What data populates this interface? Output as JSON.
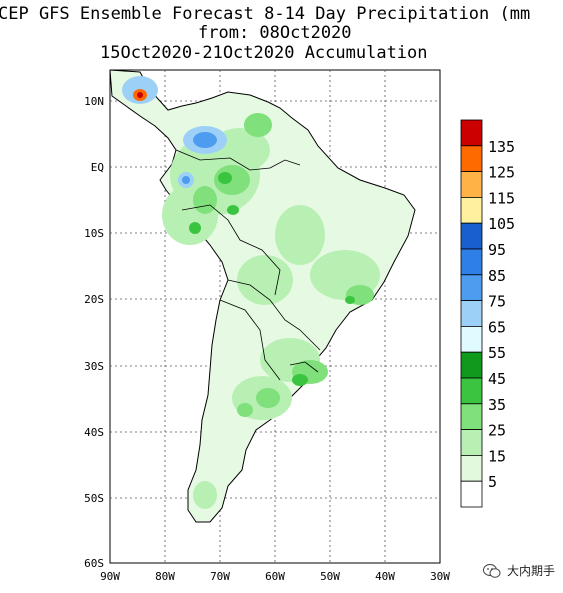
{
  "header": {
    "title_line1": "CEP GFS Ensemble Forecast 8-14 Day Precipitation (mm",
    "title_line2": "from: 08Oct2020",
    "title_line3": "15Oct2020-21Oct2020 Accumulation"
  },
  "map": {
    "region": "South America",
    "lat_labels": [
      "10N",
      "EQ",
      "10S",
      "20S",
      "30S",
      "40S",
      "50S",
      "60S"
    ],
    "lon_labels": [
      "90W",
      "80W",
      "70W",
      "60W",
      "50W",
      "40W",
      "30W"
    ]
  },
  "legend": {
    "levels": [
      {
        "label": "",
        "color": "#cc0000"
      },
      {
        "label": "135",
        "color": "#ff6a00"
      },
      {
        "label": "125",
        "color": "#ffb347"
      },
      {
        "label": "115",
        "color": "#fff0a0"
      },
      {
        "label": "105",
        "color": "#1a5fd0"
      },
      {
        "label": "95",
        "color": "#2f7fe8"
      },
      {
        "label": "85",
        "color": "#4d9cf0"
      },
      {
        "label": "75",
        "color": "#9dd0f7"
      },
      {
        "label": "65",
        "color": "#e0fbff"
      },
      {
        "label": "55",
        "color": "#0f9a1e"
      },
      {
        "label": "45",
        "color": "#3bc43f"
      },
      {
        "label": "35",
        "color": "#7fe07c"
      },
      {
        "label": "25",
        "color": "#b8f0b4"
      },
      {
        "label": "15",
        "color": "#e2f9de"
      },
      {
        "label": "5",
        "color": "#ffffff"
      }
    ]
  },
  "watermark": {
    "text": "大内期手"
  }
}
